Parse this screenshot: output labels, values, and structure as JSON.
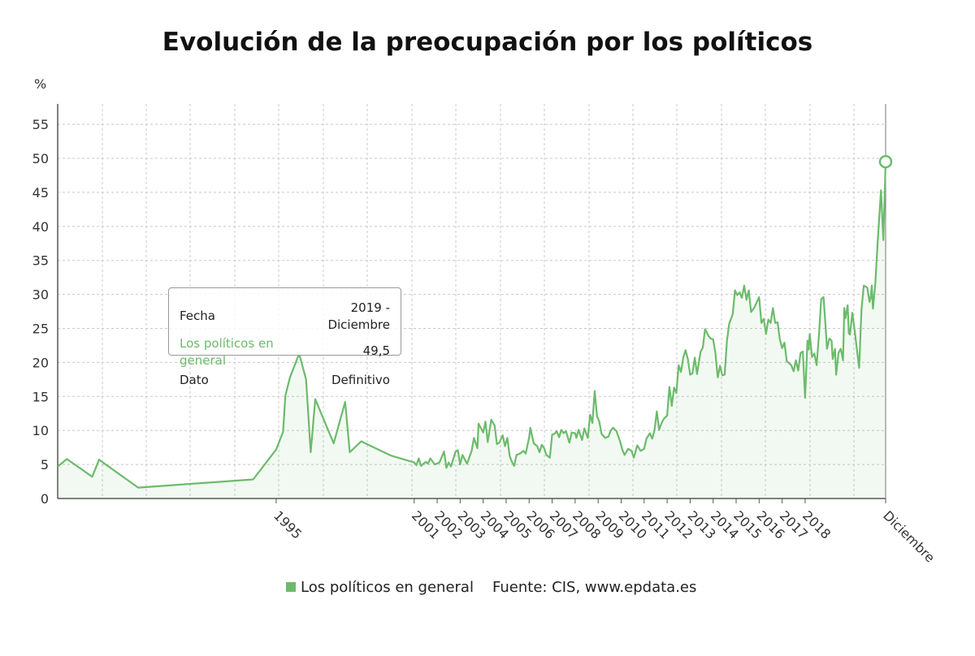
{
  "title": "Evolución de la preocupación por los políticos",
  "legend": {
    "label": "Los políticos en general",
    "color": "#6cbb6c"
  },
  "source": "Fuente: CIS, www.epdata.es",
  "tooltip": {
    "row1_key": "Fecha",
    "row1_value": "2019 - Diciembre",
    "row2_key": "Los políticos en general",
    "row2_value": "49,5",
    "row3_key": "Dato",
    "row3_value": "Definitivo"
  },
  "chart_data": {
    "type": "area",
    "title": "Evolución de la preocupación por los políticos",
    "ylabel": "%",
    "ylim": [
      0,
      58
    ],
    "yticks": [
      0,
      5,
      10,
      15,
      20,
      25,
      30,
      35,
      40,
      45,
      50,
      55
    ],
    "grid": true,
    "legend_position": "bottom",
    "x_tick_labels": [
      {
        "label": "1995",
        "x": 1995.0
      },
      {
        "label": "2001",
        "x": 2001.0
      },
      {
        "label": "2002",
        "x": 2002.0
      },
      {
        "label": "2003",
        "x": 2003.0
      },
      {
        "label": "2004",
        "x": 2004.0
      },
      {
        "label": "2005",
        "x": 2005.0
      },
      {
        "label": "2006",
        "x": 2006.0
      },
      {
        "label": "2007",
        "x": 2007.0
      },
      {
        "label": "2008",
        "x": 2008.0
      },
      {
        "label": "2009",
        "x": 2009.0
      },
      {
        "label": "2010",
        "x": 2010.0
      },
      {
        "label": "2011",
        "x": 2011.0
      },
      {
        "label": "2012",
        "x": 2012.0
      },
      {
        "label": "2013",
        "x": 2013.0
      },
      {
        "label": "2014",
        "x": 2014.0
      },
      {
        "label": "2015",
        "x": 2015.0
      },
      {
        "label": "2016",
        "x": 2016.0
      },
      {
        "label": "2017",
        "x": 2017.0
      },
      {
        "label": "2018",
        "x": 2018.0
      },
      {
        "label": "Diciembre",
        "x": 2019.92
      }
    ],
    "series": [
      {
        "name": "Los políticos en general",
        "color": "#6cbb6c",
        "points": [
          [
            1985.5,
            4.7
          ],
          [
            1985.9,
            5.8
          ],
          [
            1987.0,
            3.2
          ],
          [
            1987.3,
            5.7
          ],
          [
            1989.0,
            1.6
          ],
          [
            1994.0,
            2.8
          ],
          [
            1995.0,
            7.2
          ],
          [
            1995.3,
            9.8
          ],
          [
            1995.4,
            15.1
          ],
          [
            1995.6,
            17.8
          ],
          [
            1996.0,
            21.3
          ],
          [
            1996.3,
            17.5
          ],
          [
            1996.5,
            6.8
          ],
          [
            1996.7,
            14.6
          ],
          [
            1997.5,
            8.1
          ],
          [
            1998.0,
            14.2
          ],
          [
            1998.2,
            6.8
          ],
          [
            1998.7,
            8.4
          ],
          [
            2000.0,
            6.3
          ],
          [
            2001.0,
            5.3
          ],
          [
            2001.1,
            4.9
          ],
          [
            2001.2,
            5.9
          ],
          [
            2001.3,
            4.8
          ],
          [
            2001.5,
            5.4
          ],
          [
            2001.6,
            5.1
          ],
          [
            2001.7,
            5.9
          ],
          [
            2001.9,
            5.0
          ],
          [
            2002.1,
            5.3
          ],
          [
            2002.3,
            6.9
          ],
          [
            2002.4,
            4.5
          ],
          [
            2002.5,
            5.3
          ],
          [
            2002.6,
            4.7
          ],
          [
            2002.8,
            6.9
          ],
          [
            2002.9,
            7.1
          ],
          [
            2003.0,
            5.0
          ],
          [
            2003.1,
            6.4
          ],
          [
            2003.3,
            5.1
          ],
          [
            2003.5,
            7.0
          ],
          [
            2003.6,
            8.9
          ],
          [
            2003.75,
            7.4
          ],
          [
            2003.8,
            11.0
          ],
          [
            2004.0,
            9.7
          ],
          [
            2004.1,
            11.3
          ],
          [
            2004.2,
            8.3
          ],
          [
            2004.35,
            11.6
          ],
          [
            2004.5,
            10.7
          ],
          [
            2004.6,
            8.0
          ],
          [
            2004.7,
            8.2
          ],
          [
            2004.85,
            9.3
          ],
          [
            2004.95,
            7.7
          ],
          [
            2005.05,
            8.9
          ],
          [
            2005.15,
            6.3
          ],
          [
            2005.25,
            5.4
          ],
          [
            2005.35,
            4.8
          ],
          [
            2005.45,
            6.4
          ],
          [
            2005.6,
            6.6
          ],
          [
            2005.75,
            7.0
          ],
          [
            2005.85,
            6.6
          ],
          [
            2006.0,
            9.0
          ],
          [
            2006.05,
            10.4
          ],
          [
            2006.2,
            8.1
          ],
          [
            2006.35,
            7.7
          ],
          [
            2006.45,
            6.8
          ],
          [
            2006.55,
            7.9
          ],
          [
            2006.65,
            7.4
          ],
          [
            2006.75,
            6.4
          ],
          [
            2006.9,
            6.0
          ],
          [
            2007.0,
            9.4
          ],
          [
            2007.1,
            9.5
          ],
          [
            2007.2,
            9.9
          ],
          [
            2007.3,
            9.0
          ],
          [
            2007.4,
            10.1
          ],
          [
            2007.5,
            9.6
          ],
          [
            2007.6,
            9.9
          ],
          [
            2007.75,
            8.2
          ],
          [
            2007.85,
            9.7
          ],
          [
            2008.0,
            9.6
          ],
          [
            2008.05,
            8.9
          ],
          [
            2008.15,
            10.1
          ],
          [
            2008.3,
            8.6
          ],
          [
            2008.4,
            10.3
          ],
          [
            2008.55,
            8.9
          ],
          [
            2008.65,
            12.3
          ],
          [
            2008.75,
            11.1
          ],
          [
            2008.85,
            15.8
          ],
          [
            2008.95,
            12.1
          ],
          [
            2009.05,
            11.3
          ],
          [
            2009.15,
            9.5
          ],
          [
            2009.3,
            8.9
          ],
          [
            2009.45,
            9.1
          ],
          [
            2009.55,
            10.0
          ],
          [
            2009.65,
            10.4
          ],
          [
            2009.8,
            9.9
          ],
          [
            2009.95,
            8.4
          ],
          [
            2010.05,
            7.2
          ],
          [
            2010.15,
            6.4
          ],
          [
            2010.3,
            7.3
          ],
          [
            2010.45,
            7.0
          ],
          [
            2010.55,
            6.0
          ],
          [
            2010.7,
            7.8
          ],
          [
            2010.85,
            7.0
          ],
          [
            2011.0,
            7.3
          ],
          [
            2011.1,
            8.8
          ],
          [
            2011.25,
            9.6
          ],
          [
            2011.35,
            8.8
          ],
          [
            2011.45,
            10.0
          ],
          [
            2011.55,
            12.8
          ],
          [
            2011.65,
            10.1
          ],
          [
            2011.75,
            11.0
          ],
          [
            2011.85,
            11.7
          ],
          [
            2012.0,
            12.2
          ],
          [
            2012.1,
            16.4
          ],
          [
            2012.2,
            13.6
          ],
          [
            2012.3,
            16.3
          ],
          [
            2012.4,
            15.5
          ],
          [
            2012.5,
            19.6
          ],
          [
            2012.6,
            18.6
          ],
          [
            2012.7,
            20.7
          ],
          [
            2012.8,
            21.8
          ],
          [
            2012.9,
            20.5
          ],
          [
            2013.0,
            18.2
          ],
          [
            2013.1,
            18.4
          ],
          [
            2013.2,
            20.7
          ],
          [
            2013.3,
            18.3
          ],
          [
            2013.45,
            21.5
          ],
          [
            2013.55,
            22.2
          ],
          [
            2013.65,
            24.9
          ],
          [
            2013.8,
            23.9
          ],
          [
            2013.9,
            23.5
          ],
          [
            2014.0,
            23.4
          ],
          [
            2014.1,
            21.4
          ],
          [
            2014.2,
            17.8
          ],
          [
            2014.3,
            19.5
          ],
          [
            2014.4,
            18.1
          ],
          [
            2014.5,
            18.2
          ],
          [
            2014.6,
            23.2
          ],
          [
            2014.7,
            25.7
          ],
          [
            2014.85,
            27.1
          ],
          [
            2014.95,
            30.6
          ],
          [
            2015.05,
            29.9
          ],
          [
            2015.15,
            30.3
          ],
          [
            2015.25,
            29.5
          ],
          [
            2015.35,
            31.3
          ],
          [
            2015.45,
            29.2
          ],
          [
            2015.55,
            30.6
          ],
          [
            2015.65,
            27.4
          ],
          [
            2015.8,
            28.1
          ],
          [
            2015.9,
            28.9
          ],
          [
            2016.0,
            29.6
          ],
          [
            2016.1,
            25.8
          ],
          [
            2016.2,
            26.4
          ],
          [
            2016.3,
            24.2
          ],
          [
            2016.4,
            26.3
          ],
          [
            2016.5,
            25.8
          ],
          [
            2016.6,
            28.0
          ],
          [
            2016.7,
            25.8
          ],
          [
            2016.8,
            25.9
          ],
          [
            2016.9,
            23.4
          ],
          [
            2017.0,
            22.1
          ],
          [
            2017.1,
            22.9
          ],
          [
            2017.2,
            20.2
          ],
          [
            2017.3,
            19.9
          ],
          [
            2017.4,
            19.6
          ],
          [
            2017.5,
            18.7
          ],
          [
            2017.6,
            20.3
          ],
          [
            2017.7,
            18.8
          ],
          [
            2017.8,
            21.4
          ],
          [
            2017.9,
            21.6
          ],
          [
            2018.0,
            14.8
          ],
          [
            2018.1,
            23.2
          ],
          [
            2018.15,
            21.9
          ],
          [
            2018.2,
            24.2
          ],
          [
            2018.3,
            20.8
          ],
          [
            2018.4,
            21.3
          ],
          [
            2018.5,
            19.6
          ],
          [
            2018.6,
            24.0
          ],
          [
            2018.7,
            29.3
          ],
          [
            2018.8,
            29.6
          ],
          [
            2018.9,
            24.8
          ],
          [
            2018.95,
            22.0
          ],
          [
            2019.05,
            23.5
          ],
          [
            2019.15,
            23.2
          ],
          [
            2019.2,
            20.5
          ],
          [
            2019.3,
            22.0
          ],
          [
            2019.35,
            18.2
          ],
          [
            2019.45,
            21.4
          ],
          [
            2019.55,
            22.0
          ],
          [
            2019.65,
            20.3
          ],
          [
            2019.7,
            28.0
          ],
          [
            2019.75,
            26.5
          ],
          [
            2019.85,
            28.4
          ],
          [
            2019.9,
            24.3
          ],
          [
            2019.95,
            24.1
          ],
          [
            2020.0,
            25.6
          ],
          [
            2020.05,
            27.3
          ],
          [
            2020.15,
            24.8
          ],
          [
            2020.25,
            22.0
          ],
          [
            2020.35,
            19.2
          ],
          [
            2020.45,
            27.8
          ],
          [
            2020.55,
            31.3
          ],
          [
            2020.7,
            31.0
          ],
          [
            2020.8,
            28.9
          ],
          [
            2020.85,
            29.5
          ],
          [
            2020.9,
            31.3
          ],
          [
            2020.95,
            27.9
          ],
          [
            2021.05,
            31.6
          ],
          [
            2021.15,
            37.5
          ],
          [
            2021.3,
            45.3
          ],
          [
            2021.4,
            38.0
          ],
          [
            2021.5,
            49.5
          ]
        ]
      }
    ],
    "highlight_point": {
      "x": 2021.5,
      "y": 49.5
    }
  }
}
